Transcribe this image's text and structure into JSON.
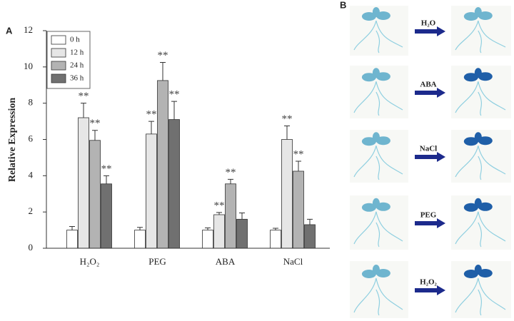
{
  "chart_data": {
    "type": "bar",
    "panel_label": "A",
    "ylabel": "Relative Expression",
    "categories": [
      "H₂O₂",
      "PEG",
      "ABA",
      "NaCl"
    ],
    "series": [
      {
        "name": "0 h",
        "color": "#ffffff",
        "values": [
          1.0,
          1.0,
          1.0,
          1.0
        ],
        "errors": [
          0.2,
          0.15,
          0.12,
          0.1
        ],
        "significance": [
          null,
          null,
          null,
          null
        ]
      },
      {
        "name": "12 h",
        "color": "#e6e6e6",
        "values": [
          7.2,
          6.3,
          1.85,
          6.0
        ],
        "errors": [
          0.8,
          0.7,
          0.12,
          0.75
        ],
        "significance": [
          "**",
          "**",
          "**",
          "**"
        ]
      },
      {
        "name": "24 h",
        "color": "#b3b3b3",
        "values": [
          5.95,
          9.25,
          3.55,
          4.25
        ],
        "errors": [
          0.55,
          1.0,
          0.25,
          0.55
        ],
        "significance": [
          "**",
          "**",
          "**",
          "**"
        ]
      },
      {
        "name": "36 h",
        "color": "#707070",
        "values": [
          3.55,
          7.1,
          1.6,
          1.3
        ],
        "errors": [
          0.45,
          1.0,
          0.35,
          0.3
        ],
        "significance": [
          "**",
          "**",
          null,
          null
        ]
      }
    ],
    "ylim": [
      0,
      12
    ],
    "yticks": [
      0,
      2,
      4,
      6,
      8,
      10,
      12
    ],
    "grid": false,
    "legend": "upper left"
  },
  "panel_b": {
    "label": "B",
    "treatments": [
      "H₂O",
      "ABA",
      "NaCl",
      "PEG",
      "H₂O₂"
    ]
  }
}
